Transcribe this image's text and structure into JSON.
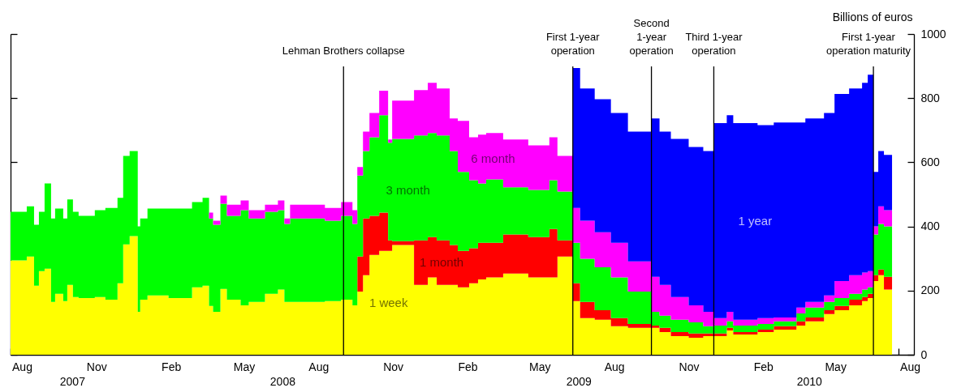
{
  "chart_data": {
    "type": "area",
    "stacked": true,
    "ylabel": "Billions of euros",
    "x": [
      "2007-08-01",
      "2007-08-21",
      "2007-08-30",
      "2007-09-05",
      "2007-09-12",
      "2007-09-20",
      "2007-09-25",
      "2007-10-05",
      "2007-10-10",
      "2007-10-17",
      "2007-10-24",
      "2007-11-13",
      "2007-11-26",
      "2007-12-11",
      "2007-12-18",
      "2007-12-26",
      "2008-01-05",
      "2008-01-08",
      "2008-01-17",
      "2008-02-12",
      "2008-03-12",
      "2008-03-25",
      "2008-04-02",
      "2008-04-07",
      "2008-04-16",
      "2008-04-24",
      "2008-05-11",
      "2008-05-21",
      "2008-06-10",
      "2008-06-26",
      "2008-07-04",
      "2008-07-11",
      "2008-08-23",
      "2008-09-12",
      "2008-09-26",
      "2008-10-02",
      "2008-10-09",
      "2008-10-17",
      "2008-10-29",
      "2008-11-09",
      "2008-11-14",
      "2008-12-11",
      "2008-12-28",
      "2009-01-08",
      "2009-01-24",
      "2009-02-03",
      "2009-02-17",
      "2009-02-28",
      "2009-03-10",
      "2009-03-31",
      "2009-05-01",
      "2009-05-27",
      "2009-06-06",
      "2009-06-25",
      "2009-07-04",
      "2009-07-22",
      "2009-08-11",
      "2009-09-01",
      "2009-09-30",
      "2009-10-10",
      "2009-10-24",
      "2009-11-15",
      "2009-12-03",
      "2009-12-16",
      "2010-01-01",
      "2010-01-09",
      "2010-02-08",
      "2010-02-28",
      "2010-03-28",
      "2010-04-08",
      "2010-05-01",
      "2010-05-14",
      "2010-06-01",
      "2010-06-17",
      "2010-06-24",
      "2010-07-01",
      "2010-07-07",
      "2010-07-14",
      "2010-07-24"
    ],
    "series": [
      {
        "name": "1 week",
        "color": "#ffff00",
        "values": [
          294,
          306,
          215,
          261,
          268,
          165,
          190,
          167,
          218,
          180,
          177,
          180,
          172,
          223,
          344,
          370,
          134,
          172,
          185,
          177,
          210,
          215,
          152,
          134,
          205,
          172,
          154,
          165,
          190,
          203,
          165,
          165,
          167,
          172,
          154,
          197,
          248,
          311,
          324,
          324,
          342,
          218,
          241,
          218,
          218,
          210,
          223,
          235,
          241,
          253,
          241,
          241,
          306,
          167,
          114,
          109,
          89,
          84,
          84,
          71,
          58,
          53,
          58,
          58,
          76,
          63,
          71,
          78,
          91,
          104,
          127,
          139,
          154,
          167,
          177,
          230,
          248,
          203,
          203
        ]
      },
      {
        "name": "1 month",
        "color": "#ff0000",
        "values": [
          null,
          null,
          null,
          null,
          null,
          null,
          null,
          null,
          null,
          null,
          null,
          null,
          null,
          null,
          null,
          null,
          null,
          null,
          null,
          null,
          null,
          null,
          null,
          null,
          null,
          null,
          null,
          null,
          null,
          null,
          null,
          null,
          null,
          null,
          null,
          109,
          177,
          122,
          119,
          33,
          12,
          139,
          126,
          139,
          124,
          114,
          109,
          114,
          108,
          122,
          126,
          151,
          51,
          56,
          51,
          30,
          25,
          12,
          7,
          13,
          13,
          13,
          8,
          8,
          8,
          8,
          7,
          11,
          13,
          12,
          12,
          13,
          18,
          13,
          13,
          18,
          18,
          40,
          40
        ]
      },
      {
        "name": "3 month",
        "color": "#00ff00",
        "values": [
          152,
          157,
          190,
          185,
          266,
          260,
          266,
          258,
          266,
          266,
          256,
          271,
          286,
          266,
          276,
          265,
          266,
          253,
          271,
          279,
          266,
          274,
          273,
          271,
          266,
          261,
          297,
          260,
          256,
          248,
          243,
          260,
          251,
          261,
          254,
          253,
          210,
          245,
          304,
          304,
          319,
          327,
          324,
          327,
          293,
          246,
          212,
          185,
          198,
          147,
          147,
          152,
          152,
          126,
          134,
          134,
          127,
          101,
          43,
          38,
          38,
          35,
          23,
          25,
          20,
          20,
          18,
          15,
          25,
          31,
          26,
          25,
          18,
          23,
          20,
          127,
          142,
          157,
          157
        ]
      },
      {
        "name": "6 month",
        "color": "#ff00ff",
        "values": [
          null,
          null,
          null,
          null,
          null,
          null,
          null,
          null,
          null,
          null,
          null,
          null,
          null,
          null,
          null,
          null,
          null,
          null,
          null,
          null,
          null,
          null,
          18,
          13,
          25,
          35,
          30,
          26,
          22,
          30,
          17,
          43,
          40,
          43,
          43,
          26,
          61,
          76,
          76,
          10,
          119,
          141,
          157,
          146,
          102,
          159,
          134,
          152,
          144,
          149,
          139,
          134,
          111,
          109,
          119,
          109,
          108,
          94,
          109,
          96,
          71,
          53,
          45,
          23,
          30,
          18,
          18,
          12,
          18,
          18,
          20,
          53,
          58,
          53,
          51,
          25,
          55,
          51,
          51
        ]
      },
      {
        "name": "1 year",
        "color": "#0000ff",
        "values": [
          null,
          null,
          null,
          null,
          null,
          null,
          null,
          null,
          null,
          null,
          null,
          null,
          null,
          null,
          null,
          null,
          null,
          null,
          null,
          null,
          null,
          null,
          null,
          null,
          null,
          null,
          null,
          null,
          null,
          null,
          null,
          null,
          null,
          null,
          null,
          null,
          null,
          null,
          null,
          null,
          null,
          null,
          null,
          null,
          null,
          null,
          null,
          null,
          null,
          null,
          null,
          null,
          null,
          436,
          412,
          415,
          405,
          405,
          494,
          478,
          493,
          494,
          501,
          608,
          613,
          613,
          602,
          608,
          577,
          572,
          569,
          583,
          582,
          592,
          612,
          170,
          172,
          172,
          172
        ]
      }
    ],
    "xlim": [
      "2007-08-01",
      "2010-08-20"
    ],
    "xticks": [
      {
        "value": "2007-08-01",
        "label": null
      },
      {
        "value": "2007-09-01",
        "label": null
      },
      {
        "value": "2007-10-01",
        "label": null
      },
      {
        "value": "2007-11-01",
        "label": null
      },
      {
        "value": "2007-12-01",
        "label": null
      },
      {
        "value": "2008-01-01",
        "label": null
      },
      {
        "value": "2008-02-01",
        "label": null
      },
      {
        "value": "2008-03-01",
        "label": null
      },
      {
        "value": "2008-04-01",
        "label": null
      },
      {
        "value": "2008-05-01",
        "label": null
      },
      {
        "value": "2008-06-01",
        "label": null
      },
      {
        "value": "2008-07-01",
        "label": null
      },
      {
        "value": "2008-08-01",
        "label": null
      },
      {
        "value": "2008-09-01",
        "label": null
      },
      {
        "value": "2008-10-01",
        "label": null
      },
      {
        "value": "2008-11-01",
        "label": null
      },
      {
        "value": "2008-12-01",
        "label": null
      },
      {
        "value": "2009-01-01",
        "label": null
      },
      {
        "value": "2009-02-01",
        "label": null
      },
      {
        "value": "2009-03-01",
        "label": null
      },
      {
        "value": "2009-04-01",
        "label": null
      },
      {
        "value": "2009-05-01",
        "label": null
      },
      {
        "value": "2009-06-01",
        "label": null
      },
      {
        "value": "2009-07-01",
        "label": null
      },
      {
        "value": "2009-08-01",
        "label": null
      },
      {
        "value": "2009-09-01",
        "label": null
      },
      {
        "value": "2009-10-01",
        "label": null
      },
      {
        "value": "2009-11-01",
        "label": null
      },
      {
        "value": "2009-12-01",
        "label": null
      },
      {
        "value": "2010-01-01",
        "label": null
      },
      {
        "value": "2010-02-01",
        "label": null
      },
      {
        "value": "2010-03-01",
        "label": null
      },
      {
        "value": "2010-04-01",
        "label": null
      },
      {
        "value": "2010-05-01",
        "label": null
      },
      {
        "value": "2010-06-01",
        "label": null
      },
      {
        "value": "2010-07-01",
        "label": null
      },
      {
        "value": "2010-08-01",
        "label": null
      },
      {
        "value": "2007-08-15",
        "label": "Aug"
      },
      {
        "value": "2007-11-15",
        "label": "Nov"
      },
      {
        "value": "2008-02-15",
        "label": "Feb"
      },
      {
        "value": "2008-05-15",
        "label": "May"
      },
      {
        "value": "2008-08-15",
        "label": "Aug"
      },
      {
        "value": "2008-11-15",
        "label": "Nov"
      },
      {
        "value": "2009-02-15",
        "label": "Feb"
      },
      {
        "value": "2009-05-15",
        "label": "May"
      },
      {
        "value": "2009-08-15",
        "label": "Aug"
      },
      {
        "value": "2009-11-15",
        "label": "Nov"
      },
      {
        "value": "2010-02-15",
        "label": "Feb"
      },
      {
        "value": "2010-05-15",
        "label": "May"
      },
      {
        "value": "2010-08-15",
        "label": "Aug"
      }
    ],
    "annotations": [
      "2007",
      "2008",
      "2009",
      "2010"
    ],
    "ylim": [
      0,
      1000
    ],
    "yticks": [
      0,
      200,
      400,
      600,
      800,
      1000
    ],
    "ref_lines": [
      {
        "axis": "x",
        "value": "2008-09-15",
        "label": "Lehman Brothers collapse"
      },
      {
        "axis": "x",
        "value": "2009-06-25",
        "label": "First 1-year\noperation"
      },
      {
        "axis": "x",
        "value": "2009-09-30",
        "label": "Second\n1-year\noperation"
      },
      {
        "axis": "x",
        "value": "2009-12-16",
        "label": "Third 1-year\noperation"
      },
      {
        "axis": "x",
        "value": "2010-07-01",
        "label": "First 1-year\noperation maturity"
      }
    ]
  }
}
